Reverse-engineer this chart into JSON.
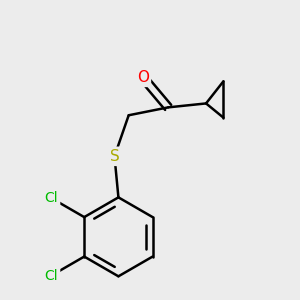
{
  "background_color": "#ececec",
  "bond_color": "#000000",
  "bond_width": 1.8,
  "atom_labels": {
    "O": {
      "text": "O",
      "color": "#ff0000",
      "fontsize": 11
    },
    "S": {
      "text": "S",
      "color": "#aaaa00",
      "fontsize": 11
    },
    "Cl1": {
      "text": "Cl",
      "color": "#00bb00",
      "fontsize": 10
    },
    "Cl2": {
      "text": "Cl",
      "color": "#00bb00",
      "fontsize": 10
    }
  },
  "figsize": [
    3.0,
    3.0
  ],
  "dpi": 100
}
